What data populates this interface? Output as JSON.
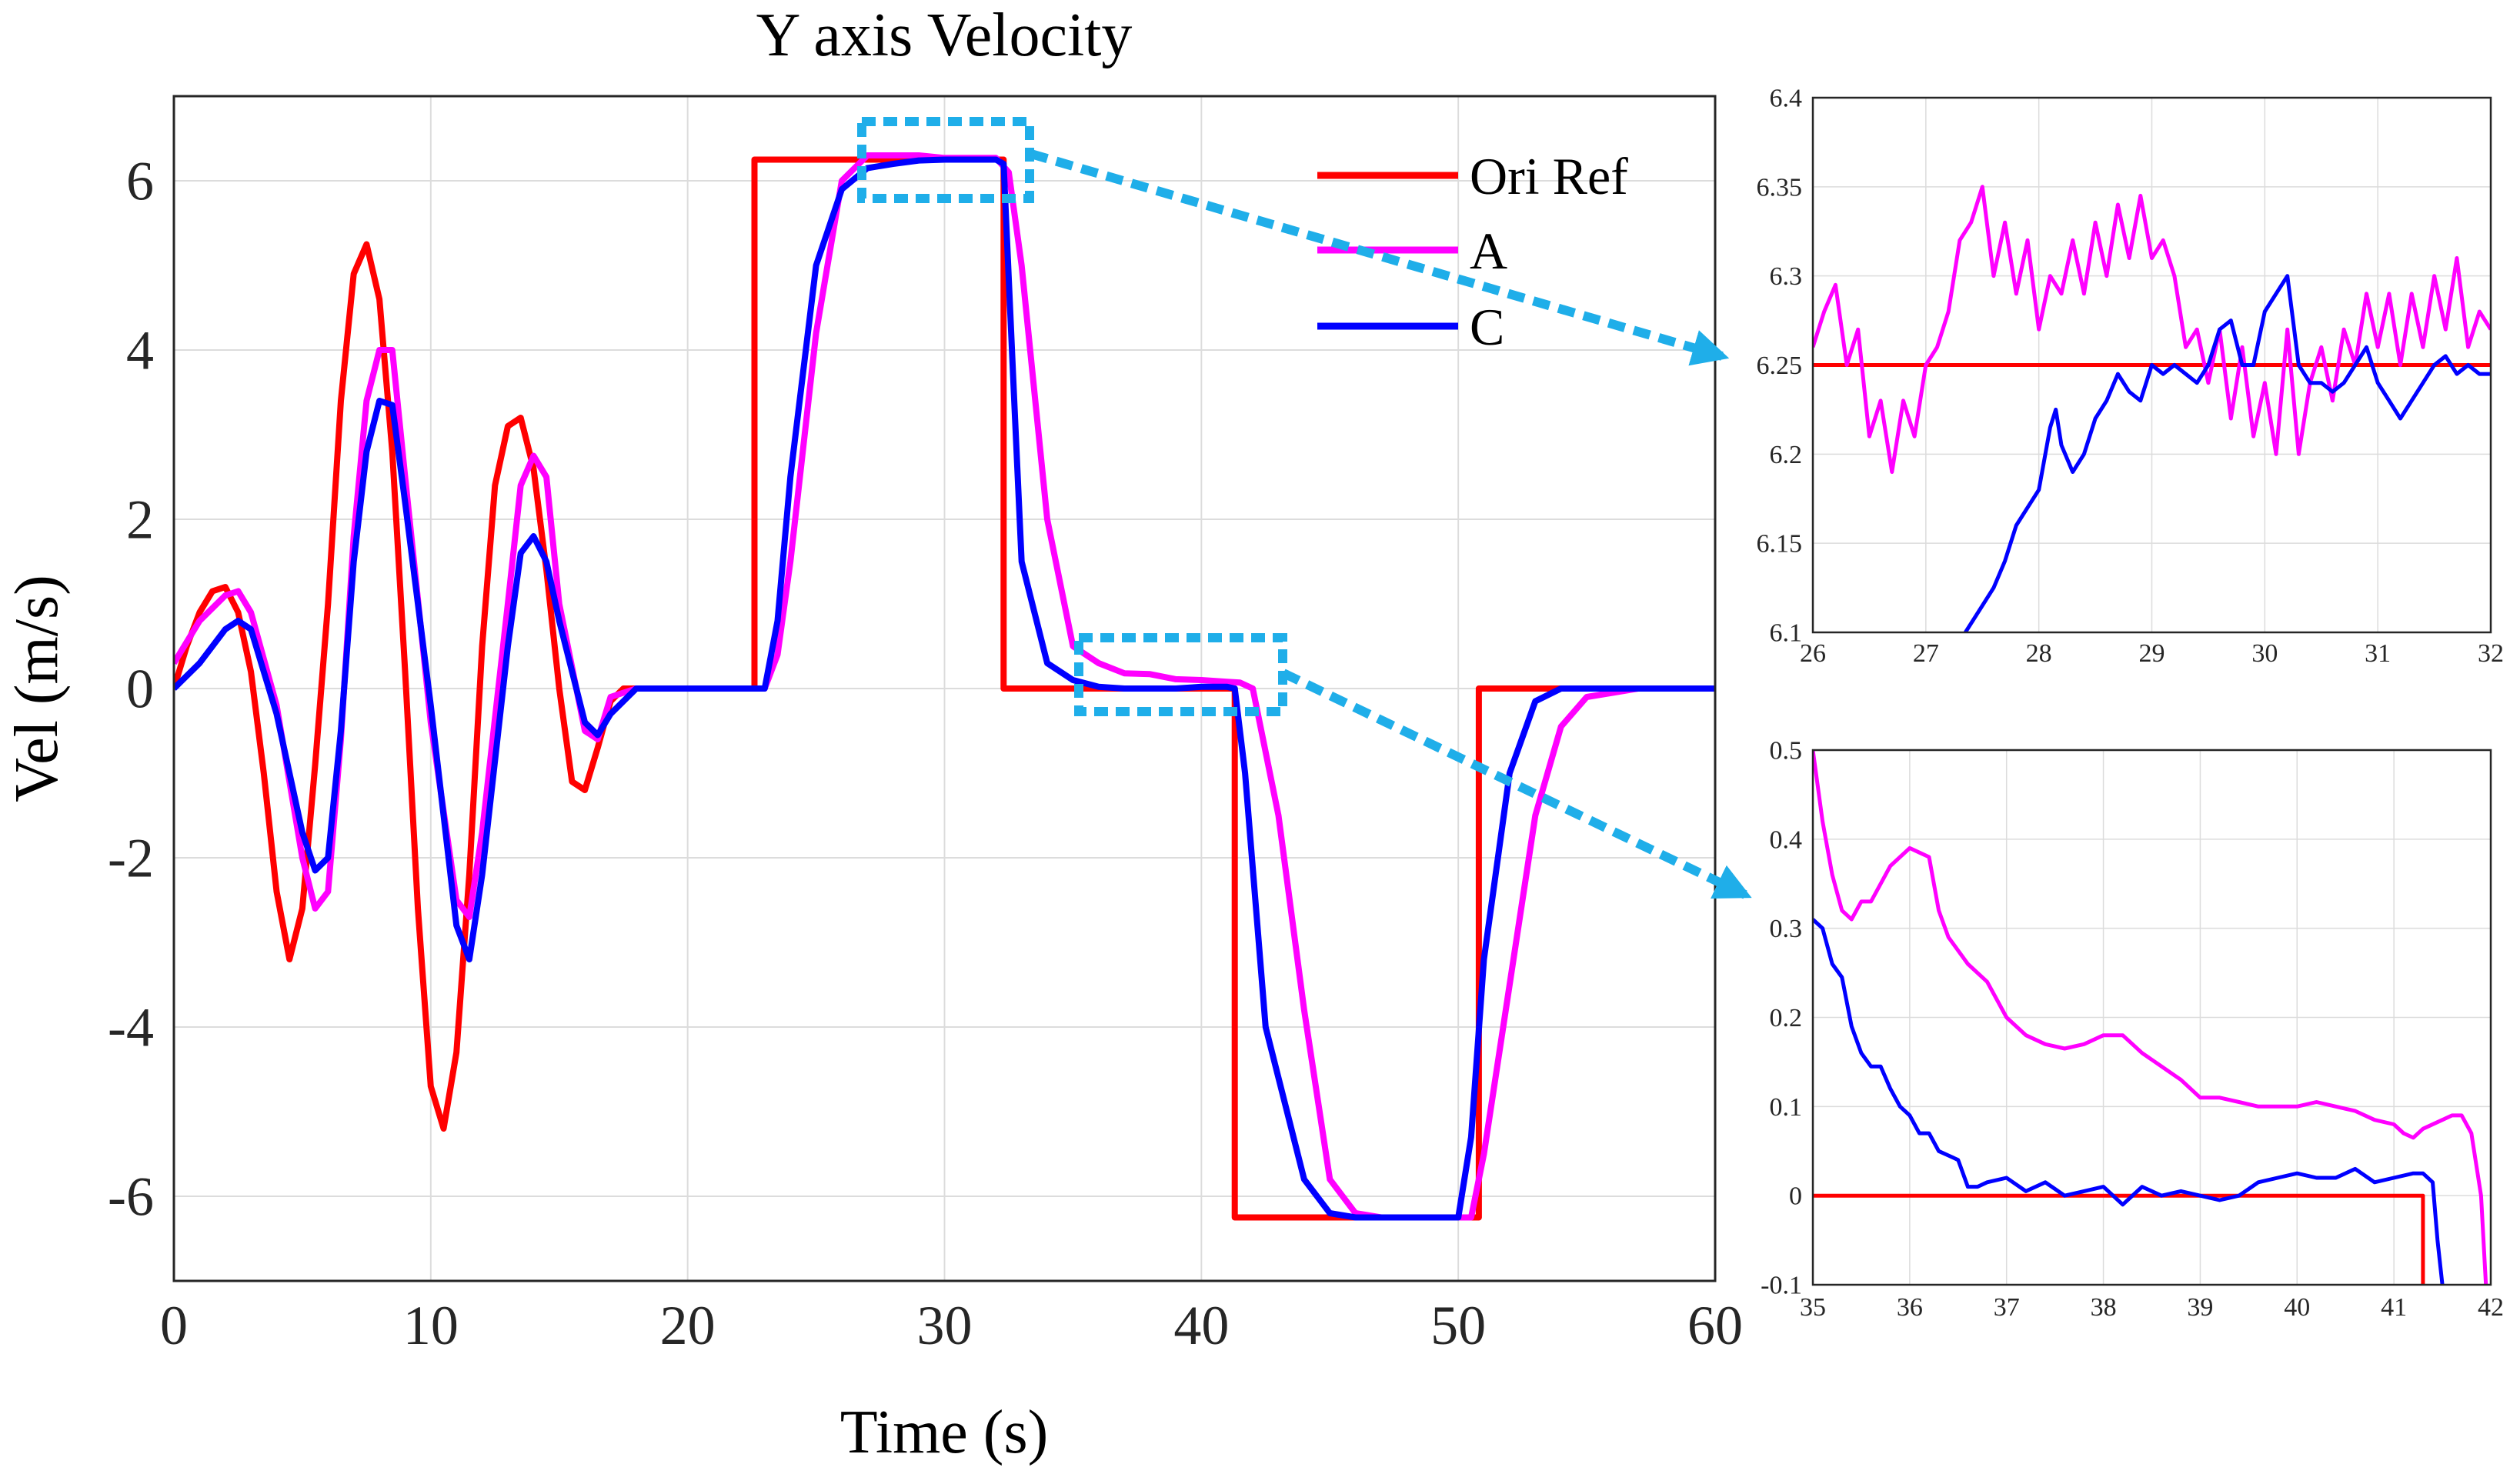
{
  "chart_data": [
    {
      "id": "main",
      "type": "line",
      "title": "Y axis Velocity",
      "xlabel": "Time (s)",
      "ylabel": "Vel (m/s)",
      "xlim": [
        0,
        60
      ],
      "ylim": [
        -7,
        7
      ],
      "xticks": [
        0,
        10,
        20,
        30,
        40,
        50,
        60
      ],
      "yticks": [
        -6,
        -4,
        -2,
        0,
        2,
        4,
        6
      ],
      "grid": true,
      "legend": "top-right",
      "series": [
        {
          "name": "Ori Ref",
          "color": "#ff0000",
          "x": [
            0,
            0.5,
            1,
            1.5,
            2,
            2.5,
            3,
            3.5,
            4,
            4.5,
            5,
            5.5,
            6,
            6.5,
            7,
            7.5,
            8,
            8.5,
            9,
            9.5,
            10,
            10.5,
            11,
            11.5,
            12,
            12.5,
            13,
            13.5,
            14,
            14.5,
            15,
            15.5,
            16,
            16.5,
            17,
            17.5,
            18,
            20,
            22.6,
            22.6,
            32.3,
            32.3,
            41.3,
            41.3,
            50.8,
            50.8,
            60
          ],
          "y": [
            0,
            0.5,
            0.9,
            1.15,
            1.2,
            0.9,
            0.2,
            -1,
            -2.4,
            -3.2,
            -2.6,
            -0.9,
            1,
            3.4,
            4.9,
            5.25,
            4.6,
            2.8,
            0.2,
            -2.6,
            -4.7,
            -5.2,
            -4.3,
            -2.2,
            0.5,
            2.4,
            3.1,
            3.2,
            2.6,
            1.4,
            0,
            -1.1,
            -1.2,
            -0.7,
            -0.15,
            0,
            0,
            0,
            0,
            6.25,
            6.25,
            0,
            0,
            -6.25,
            -6.25,
            0,
            0
          ]
        },
        {
          "name": "A",
          "color": "#ff00ff",
          "x": [
            0,
            1,
            2,
            2.5,
            3,
            4,
            5,
            5.5,
            6,
            6.5,
            7,
            7.5,
            8,
            8.5,
            9,
            10,
            11,
            11.5,
            12,
            13,
            13.5,
            14,
            14.5,
            15,
            16,
            16.5,
            17,
            18,
            20,
            22,
            23,
            23.5,
            24,
            25,
            26,
            27,
            28,
            29,
            30,
            31,
            32,
            32.5,
            33,
            34,
            35,
            36,
            37,
            38,
            39,
            40,
            41,
            41.5,
            42,
            43,
            44,
            45,
            46,
            47,
            48,
            49,
            50,
            50.5,
            51,
            52,
            53,
            54,
            55,
            56,
            57,
            58,
            59,
            60
          ],
          "y": [
            0.3,
            0.8,
            1.1,
            1.15,
            0.9,
            -0.2,
            -2,
            -2.6,
            -2.4,
            -0.6,
            1.8,
            3.4,
            4.0,
            4.0,
            2.5,
            -0.4,
            -2.5,
            -2.7,
            -1.7,
            1.0,
            2.4,
            2.75,
            2.5,
            1.0,
            -0.5,
            -0.6,
            -0.1,
            0,
            0,
            0,
            0,
            0.4,
            1.5,
            4.2,
            6.0,
            6.3,
            6.3,
            6.3,
            6.27,
            6.27,
            6.27,
            6.1,
            5.0,
            2.0,
            0.5,
            0.3,
            0.18,
            0.17,
            0.11,
            0.1,
            0.08,
            0.07,
            0,
            -1.5,
            -3.8,
            -5.8,
            -6.2,
            -6.25,
            -6.25,
            -6.25,
            -6.25,
            -6.25,
            -5.5,
            -3.5,
            -1.5,
            -0.45,
            -0.1,
            -0.05,
            0,
            0,
            0,
            0
          ]
        },
        {
          "name": "C",
          "color": "#0000ff",
          "x": [
            0,
            1,
            2,
            2.5,
            3,
            4,
            5,
            5.5,
            6,
            6.5,
            7,
            7.5,
            8,
            8.5,
            9,
            10,
            11,
            11.5,
            12,
            13,
            13.5,
            14,
            14.5,
            15,
            16,
            16.5,
            17,
            18,
            20,
            22,
            23,
            23.5,
            24,
            25,
            26,
            27,
            28,
            29,
            30,
            31,
            32,
            32.3,
            32.7,
            33,
            34,
            35,
            36,
            37,
            38,
            39,
            40,
            41,
            41.3,
            41.7,
            42.5,
            44,
            45,
            46,
            47,
            48,
            49,
            50,
            50.5,
            51,
            52,
            53,
            54,
            55,
            56,
            57,
            58,
            59,
            60
          ],
          "y": [
            0,
            0.3,
            0.7,
            0.8,
            0.7,
            -0.3,
            -1.7,
            -2.15,
            -2.0,
            -0.5,
            1.5,
            2.8,
            3.4,
            3.35,
            2.2,
            -0.2,
            -2.8,
            -3.2,
            -2.2,
            0.5,
            1.6,
            1.8,
            1.5,
            0.8,
            -0.4,
            -0.55,
            -0.3,
            0,
            0,
            0,
            0,
            0.8,
            2.5,
            5.0,
            5.9,
            6.15,
            6.2,
            6.24,
            6.25,
            6.25,
            6.25,
            6.2,
            3.5,
            1.5,
            0.3,
            0.1,
            0.02,
            0,
            0,
            0,
            0.02,
            0.02,
            0,
            -1.0,
            -4.0,
            -5.8,
            -6.2,
            -6.25,
            -6.25,
            -6.25,
            -6.25,
            -6.25,
            -5.3,
            -3.2,
            -1.0,
            -0.15,
            0,
            0,
            0,
            0,
            0,
            0,
            0
          ]
        }
      ]
    },
    {
      "id": "inset-top",
      "type": "line",
      "xlim": [
        26,
        32
      ],
      "ylim": [
        6.1,
        6.4
      ],
      "xticks": [
        26,
        27,
        28,
        29,
        30,
        31,
        32
      ],
      "yticks": [
        "6.1",
        "6.15",
        "6.2",
        "6.25",
        "6.3",
        "6.35",
        "6.4"
      ],
      "grid": true,
      "series": [
        {
          "color": "#ff0000",
          "x": [
            26,
            32
          ],
          "y": [
            6.25,
            6.25
          ]
        },
        {
          "color": "#ff00ff",
          "x": [
            26,
            26.1,
            26.2,
            26.3,
            26.4,
            26.5,
            26.6,
            26.7,
            26.8,
            26.9,
            27,
            27.1,
            27.2,
            27.3,
            27.4,
            27.5,
            27.6,
            27.7,
            27.8,
            27.9,
            28,
            28.1,
            28.2,
            28.3,
            28.4,
            28.5,
            28.6,
            28.7,
            28.8,
            28.9,
            29,
            29.1,
            29.2,
            29.3,
            29.4,
            29.5,
            29.6,
            29.7,
            29.8,
            29.9,
            30,
            30.1,
            30.2,
            30.3,
            30.4,
            30.5,
            30.6,
            30.7,
            30.8,
            30.9,
            31,
            31.1,
            31.2,
            31.3,
            31.4,
            31.5,
            31.6,
            31.7,
            31.8,
            31.9,
            32
          ],
          "y": [
            6.26,
            6.28,
            6.295,
            6.25,
            6.27,
            6.21,
            6.23,
            6.19,
            6.23,
            6.21,
            6.25,
            6.26,
            6.28,
            6.32,
            6.33,
            6.35,
            6.3,
            6.33,
            6.29,
            6.32,
            6.27,
            6.3,
            6.29,
            6.32,
            6.29,
            6.33,
            6.3,
            6.34,
            6.31,
            6.345,
            6.31,
            6.32,
            6.3,
            6.26,
            6.27,
            6.24,
            6.27,
            6.22,
            6.26,
            6.21,
            6.24,
            6.2,
            6.27,
            6.2,
            6.24,
            6.26,
            6.23,
            6.27,
            6.25,
            6.29,
            6.26,
            6.29,
            6.25,
            6.29,
            6.26,
            6.3,
            6.27,
            6.31,
            6.26,
            6.28,
            6.27
          ]
        },
        {
          "color": "#0000ff",
          "x": [
            27.35,
            27.5,
            27.6,
            27.7,
            27.8,
            27.9,
            28,
            28.1,
            28.15,
            28.2,
            28.3,
            28.4,
            28.5,
            28.6,
            28.7,
            28.8,
            28.9,
            29,
            29.1,
            29.2,
            29.3,
            29.4,
            29.5,
            29.6,
            29.7,
            29.8,
            29.9,
            30,
            30.1,
            30.2,
            30.3,
            30.4,
            30.5,
            30.6,
            30.7,
            30.8,
            30.9,
            31,
            31.1,
            31.2,
            31.3,
            31.4,
            31.5,
            31.6,
            31.7,
            31.8,
            31.9,
            32
          ],
          "y": [
            6.1,
            6.115,
            6.125,
            6.14,
            6.16,
            6.17,
            6.18,
            6.215,
            6.225,
            6.205,
            6.19,
            6.2,
            6.22,
            6.23,
            6.245,
            6.235,
            6.23,
            6.25,
            6.245,
            6.25,
            6.245,
            6.24,
            6.25,
            6.27,
            6.275,
            6.25,
            6.25,
            6.28,
            6.29,
            6.3,
            6.25,
            6.24,
            6.24,
            6.235,
            6.24,
            6.25,
            6.26,
            6.24,
            6.23,
            6.22,
            6.23,
            6.24,
            6.25,
            6.255,
            6.245,
            6.25,
            6.245,
            6.245
          ]
        }
      ]
    },
    {
      "id": "inset-bottom",
      "type": "line",
      "xlim": [
        35,
        42
      ],
      "ylim": [
        -0.1,
        0.5
      ],
      "xticks": [
        35,
        36,
        37,
        38,
        39,
        40,
        41,
        42
      ],
      "yticks": [
        "-0.1",
        "0",
        "0.1",
        "0.2",
        "0.3",
        "0.4",
        "0.5"
      ],
      "grid": true,
      "series": [
        {
          "color": "#ff0000",
          "x": [
            35,
            41.3,
            41.3
          ],
          "y": [
            0,
            0,
            -0.1
          ]
        },
        {
          "color": "#ff00ff",
          "x": [
            35,
            35.1,
            35.2,
            35.3,
            35.4,
            35.5,
            35.6,
            35.7,
            35.8,
            35.9,
            36,
            36.1,
            36.2,
            36.3,
            36.4,
            36.6,
            36.8,
            37,
            37.2,
            37.4,
            37.6,
            37.8,
            38,
            38.2,
            38.4,
            38.6,
            38.8,
            39,
            39.2,
            39.4,
            39.6,
            39.8,
            40,
            40.2,
            40.4,
            40.6,
            40.8,
            41,
            41.1,
            41.2,
            41.3,
            41.5,
            41.6,
            41.7,
            41.8,
            41.9,
            41.95
          ],
          "y": [
            0.5,
            0.42,
            0.36,
            0.32,
            0.31,
            0.33,
            0.33,
            0.35,
            0.37,
            0.38,
            0.39,
            0.385,
            0.38,
            0.32,
            0.29,
            0.26,
            0.24,
            0.2,
            0.18,
            0.17,
            0.165,
            0.17,
            0.18,
            0.18,
            0.16,
            0.145,
            0.13,
            0.11,
            0.11,
            0.105,
            0.1,
            0.1,
            0.1,
            0.105,
            0.1,
            0.095,
            0.085,
            0.08,
            0.07,
            0.065,
            0.075,
            0.085,
            0.09,
            0.09,
            0.07,
            0,
            -0.1
          ]
        },
        {
          "color": "#0000ff",
          "x": [
            35,
            35.1,
            35.2,
            35.3,
            35.4,
            35.5,
            35.6,
            35.7,
            35.8,
            35.9,
            36,
            36.1,
            36.2,
            36.3,
            36.4,
            36.5,
            36.6,
            36.7,
            36.8,
            37,
            37.2,
            37.4,
            37.6,
            37.8,
            38,
            38.2,
            38.4,
            38.6,
            38.8,
            39,
            39.2,
            39.4,
            39.6,
            39.8,
            40,
            40.2,
            40.4,
            40.6,
            40.8,
            41,
            41.2,
            41.3,
            41.4,
            41.45,
            41.5
          ],
          "y": [
            0.31,
            0.3,
            0.26,
            0.245,
            0.19,
            0.16,
            0.145,
            0.145,
            0.12,
            0.1,
            0.09,
            0.07,
            0.07,
            0.05,
            0.045,
            0.04,
            0.01,
            0.01,
            0.015,
            0.02,
            0.005,
            0.015,
            0,
            0.005,
            0.01,
            -0.01,
            0.01,
            0,
            0.005,
            0,
            -0.005,
            0,
            0.015,
            0.02,
            0.025,
            0.02,
            0.02,
            0.03,
            0.015,
            0.02,
            0.025,
            0.025,
            0.015,
            -0.05,
            -0.1
          ]
        }
      ]
    }
  ],
  "zoom_colors": {
    "box": "#1faee9"
  }
}
